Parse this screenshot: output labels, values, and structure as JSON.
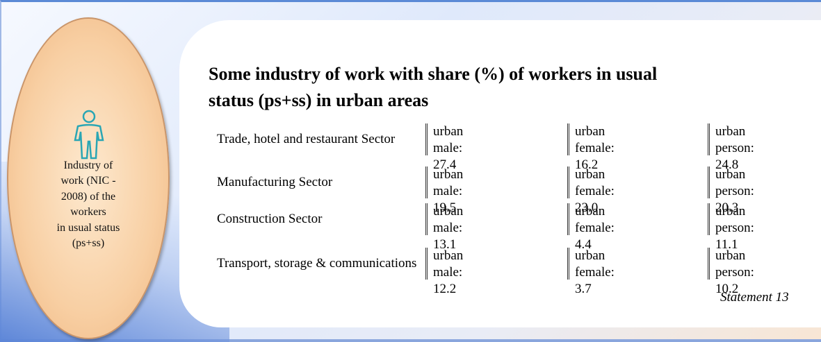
{
  "side_label": [
    "Industry of",
    "work (NIC -",
    "2008) of the",
    "workers",
    "in usual status",
    "(ps+ss)"
  ],
  "title": [
    "Some industry of work with share (%) of workers in usual",
    "status (ps+ss) in urban areas"
  ],
  "rows": [
    {
      "sector": "Trade, hotel and restaurant Sector",
      "cells": [
        [
          "urban",
          "male: 27.4"
        ],
        [
          "urban",
          "female: 16.2"
        ],
        [
          "urban",
          "person: 24.8"
        ]
      ]
    },
    {
      "sector": "Manufacturing Sector",
      "cells": [
        [
          "urban",
          "male: 19.5"
        ],
        [
          "urban",
          "female: 23.0"
        ],
        [
          "urban",
          "person: 20.3"
        ]
      ]
    },
    {
      "sector": "Construction Sector",
      "cells": [
        [
          "urban",
          "male: 13.1"
        ],
        [
          "urban",
          "female: 4.4"
        ],
        [
          "urban",
          "person: 11.1"
        ]
      ]
    },
    {
      "sector": "Transport, storage & communications",
      "cells": [
        [
          "urban",
          "male: 12.2"
        ],
        [
          "urban",
          "female: 3.7"
        ],
        [
          "urban",
          "person: 10.2"
        ]
      ]
    }
  ],
  "footnote": "Statement 13"
}
